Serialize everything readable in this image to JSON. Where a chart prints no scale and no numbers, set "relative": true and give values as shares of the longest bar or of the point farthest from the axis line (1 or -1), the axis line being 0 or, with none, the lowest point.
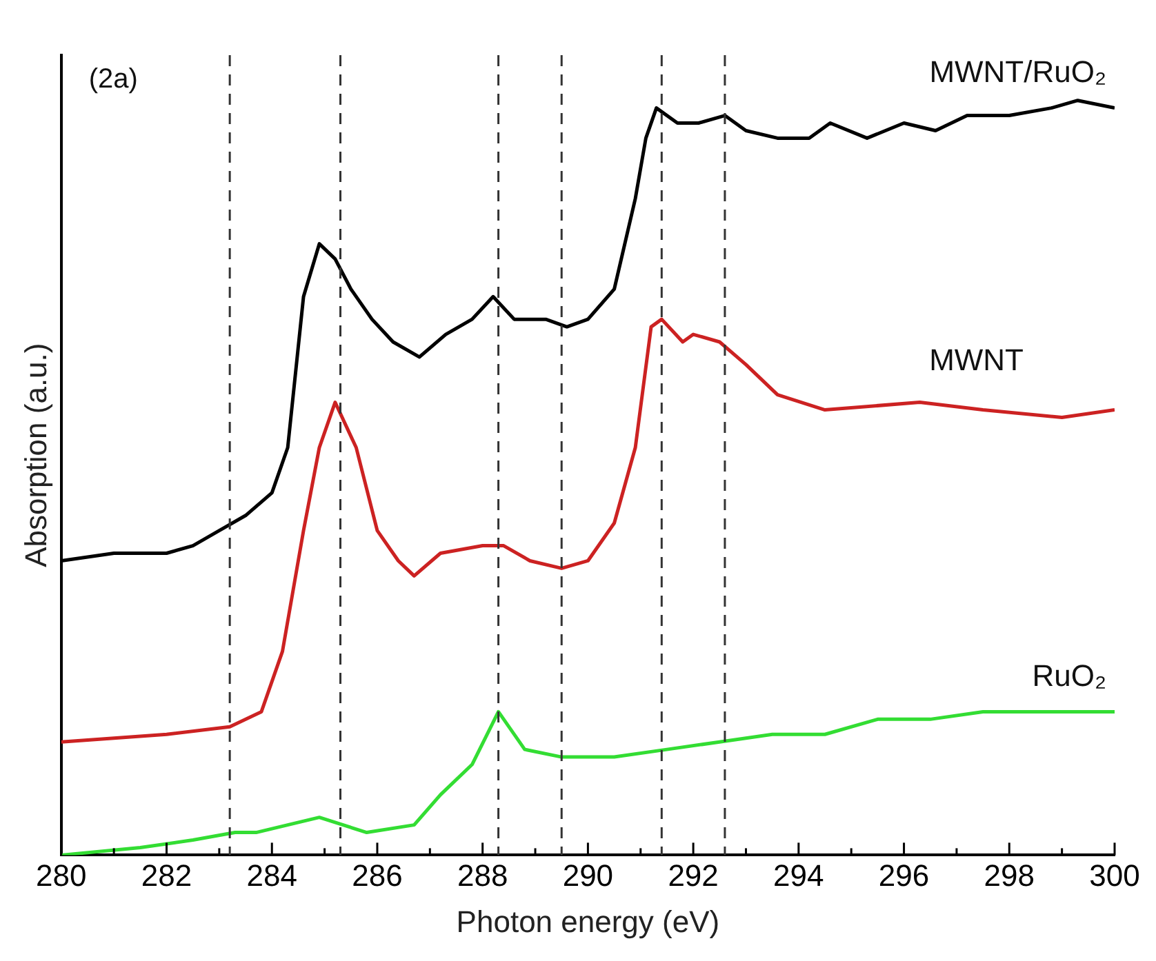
{
  "chart_data": {
    "type": "line",
    "xlabel": "Photon energy (eV)",
    "ylabel": "Absorption (a.u.)",
    "relative": true,
    "xlim": [
      280,
      300
    ],
    "xticks": [
      280,
      {
        "value": 281,
        "label": null
      },
      282,
      {
        "value": 283,
        "label": null
      },
      284,
      {
        "value": 285,
        "label": null
      },
      286,
      {
        "value": 287,
        "label": null
      },
      288,
      {
        "value": 289,
        "label": null
      },
      290,
      {
        "value": 291,
        "label": null
      },
      292,
      {
        "value": 293,
        "label": null
      },
      294,
      {
        "value": 295,
        "label": null
      },
      296,
      {
        "value": 297,
        "label": null
      },
      298,
      {
        "value": 299,
        "label": null
      },
      300
    ],
    "marker": "none",
    "legend": false,
    "grid": false,
    "annotations": [
      "(2a)"
    ],
    "ref_lines": [
      {
        "axis": "x",
        "value": 283.2,
        "color": "#333333",
        "line_style": "dashed"
      },
      {
        "axis": "x",
        "value": 285.3,
        "color": "#333333",
        "line_style": "dashed"
      },
      {
        "axis": "x",
        "value": 288.3,
        "color": "#333333",
        "line_style": "dashed"
      },
      {
        "axis": "x",
        "value": 289.5,
        "color": "#333333",
        "line_style": "dashed"
      },
      {
        "axis": "x",
        "value": 291.4,
        "color": "#333333",
        "line_style": "dashed"
      },
      {
        "axis": "x",
        "value": 292.6,
        "color": "#333333",
        "line_style": "dashed"
      }
    ],
    "series": [
      {
        "name": "MWNT/RuO₂",
        "color": "#000000",
        "x": [
          280,
          281,
          282,
          282.5,
          283,
          283.5,
          284,
          284.3,
          284.6,
          284.9,
          285.2,
          285.5,
          285.9,
          286.3,
          286.8,
          287.3,
          287.8,
          288.2,
          288.6,
          289.2,
          289.6,
          290,
          290.5,
          290.9,
          291.1,
          291.3,
          291.7,
          292.1,
          292.6,
          293,
          293.6,
          294.2,
          294.6,
          295.3,
          296,
          296.6,
          297.2,
          298,
          298.8,
          299.3,
          300
        ],
        "values": [
          0.39,
          0.4,
          0.4,
          0.41,
          0.43,
          0.45,
          0.48,
          0.54,
          0.74,
          0.81,
          0.79,
          0.75,
          0.71,
          0.68,
          0.66,
          0.69,
          0.71,
          0.74,
          0.71,
          0.71,
          0.7,
          0.71,
          0.75,
          0.87,
          0.95,
          0.99,
          0.97,
          0.97,
          0.98,
          0.96,
          0.95,
          0.95,
          0.97,
          0.95,
          0.97,
          0.96,
          0.98,
          0.98,
          0.99,
          1,
          0.99
        ]
      },
      {
        "name": "MWNT",
        "color": "#cc2222",
        "x": [
          280,
          282,
          283.2,
          283.8,
          284.2,
          284.6,
          284.9,
          285.2,
          285.6,
          286,
          286.4,
          286.7,
          287.2,
          288,
          288.4,
          288.9,
          289.5,
          290,
          290.5,
          290.9,
          291.2,
          291.4,
          291.8,
          292,
          292.5,
          293,
          293.6,
          294.5,
          296.3,
          297.5,
          299,
          300
        ],
        "values": [
          0.15,
          0.16,
          0.17,
          0.19,
          0.27,
          0.43,
          0.54,
          0.6,
          0.54,
          0.43,
          0.39,
          0.37,
          0.4,
          0.41,
          0.41,
          0.39,
          0.38,
          0.39,
          0.44,
          0.54,
          0.7,
          0.71,
          0.68,
          0.69,
          0.68,
          0.65,
          0.61,
          0.59,
          0.6,
          0.59,
          0.58,
          0.59
        ]
      },
      {
        "name": "RuO₂",
        "color": "#33dd33",
        "x": [
          280,
          281.5,
          282.5,
          283.3,
          283.7,
          284.3,
          284.9,
          285.8,
          286.7,
          287.2,
          287.8,
          288.3,
          288.8,
          289.5,
          290.5,
          291.5,
          292.5,
          293.5,
          294.5,
          295.5,
          296.5,
          297.5,
          298.5,
          300
        ],
        "values": [
          0,
          0.01,
          0.02,
          0.03,
          0.03,
          0.04,
          0.05,
          0.03,
          0.04,
          0.08,
          0.12,
          0.19,
          0.14,
          0.13,
          0.13,
          0.14,
          0.15,
          0.16,
          0.16,
          0.18,
          0.18,
          0.19,
          0.19,
          0.19
        ]
      }
    ]
  }
}
